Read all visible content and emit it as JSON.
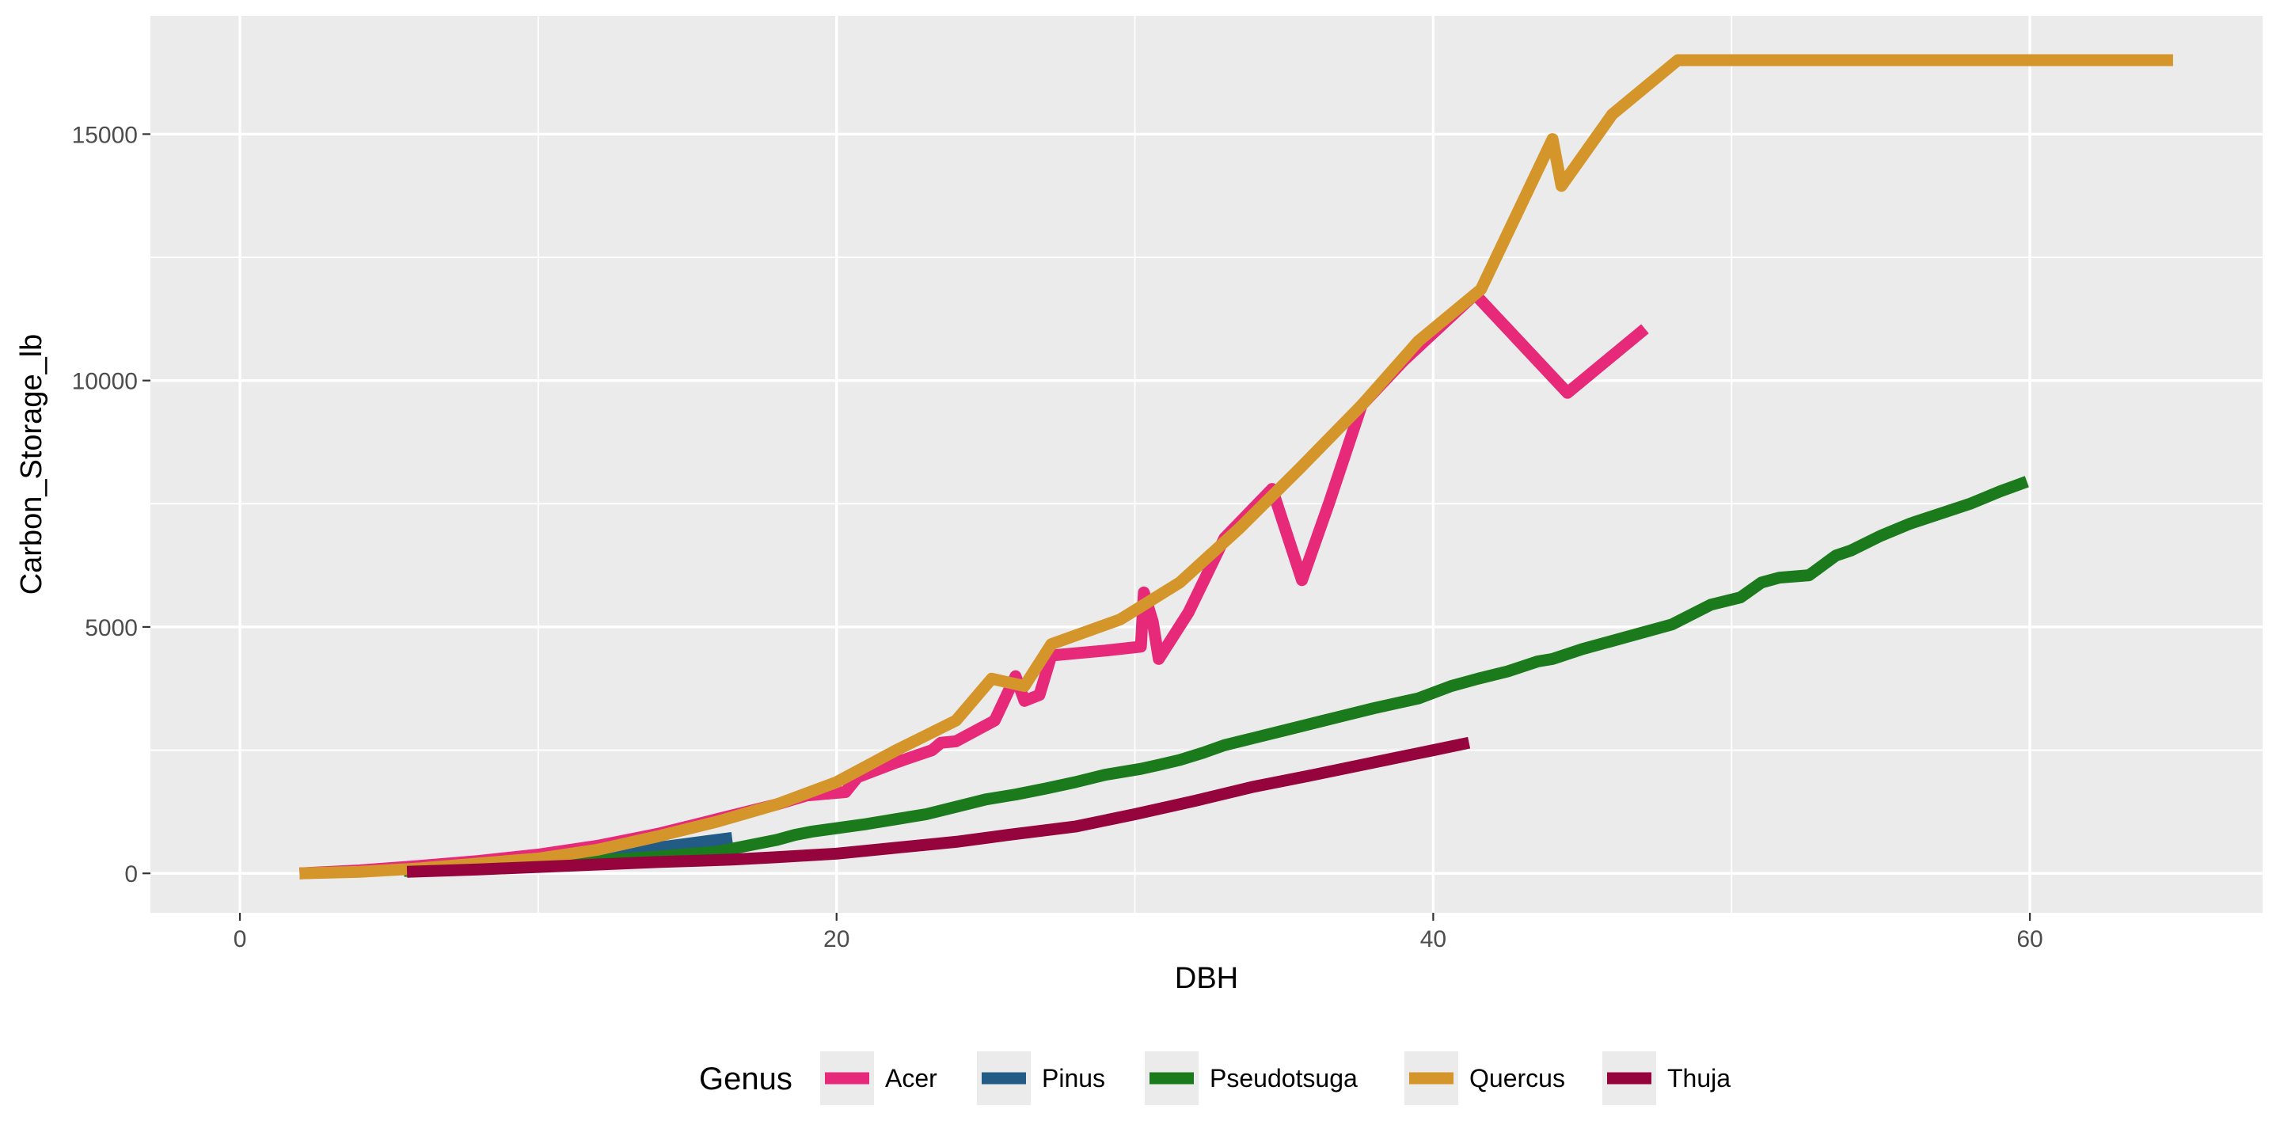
{
  "chart_data": {
    "type": "line",
    "title": "",
    "xlabel": "DBH",
    "ylabel": "Carbon_Storage_lb",
    "xlim": [
      -3,
      67.8
    ],
    "ylim": [
      -800,
      17400
    ],
    "x_ticks": [
      0,
      20,
      40,
      60
    ],
    "x_tick_labels": [
      "0",
      "20",
      "40",
      "60"
    ],
    "y_ticks": [
      0,
      5000,
      10000,
      15000
    ],
    "y_tick_labels": [
      "0",
      "5000",
      "10000",
      "15000"
    ],
    "x_minor": [
      10,
      30,
      50
    ],
    "y_minor": [
      2500,
      7500,
      12500
    ],
    "grid": true,
    "legend": {
      "title": "Genus",
      "position": "bottom"
    },
    "series": [
      {
        "name": "Acer",
        "color": "#E7297A",
        "x": [
          2,
          4,
          6,
          8,
          10,
          12,
          14,
          16,
          18,
          19,
          20.3,
          20.7,
          22,
          23.2,
          23.5,
          24,
          25.3,
          26,
          26.3,
          26.8,
          27.2,
          29,
          30.2,
          30.3,
          30.6,
          30.8,
          31.8,
          33,
          34.6,
          35.6,
          36.5,
          37.6,
          39,
          40.6,
          41.4,
          44.5,
          47.1
        ],
        "values": [
          0,
          60,
          150,
          250,
          380,
          560,
          800,
          1100,
          1400,
          1580,
          1650,
          1950,
          2250,
          2500,
          2650,
          2680,
          3100,
          4000,
          3500,
          3620,
          4420,
          4520,
          4600,
          5700,
          5100,
          4350,
          5300,
          6800,
          7800,
          5950,
          7500,
          9500,
          10400,
          11300,
          11750,
          9750,
          11050
        ]
      },
      {
        "name": "Pinus",
        "color": "#225B85",
        "x": [
          6,
          8,
          10,
          12,
          14,
          16.5
        ],
        "values": [
          80,
          150,
          250,
          380,
          520,
          720
        ]
      },
      {
        "name": "Pseudotsuga",
        "color": "#1B7A1B",
        "x": [
          5.5,
          8,
          10,
          12,
          14,
          16,
          17,
          18,
          18.6,
          19.2,
          19.8,
          20.4,
          21,
          22,
          23,
          24,
          25,
          26,
          27,
          28,
          29,
          30.2,
          30.8,
          31.5,
          32.3,
          33,
          34,
          35,
          36,
          37,
          38,
          39.5,
          40.6,
          41.5,
          42.5,
          43.5,
          44,
          45,
          46.5,
          48,
          49.3,
          50.3,
          51,
          51.6,
          52.6,
          53.5,
          54,
          55,
          56,
          57,
          58,
          59,
          59.9
        ],
        "values": [
          50,
          100,
          180,
          260,
          340,
          440,
          560,
          680,
          780,
          850,
          900,
          950,
          1000,
          1100,
          1200,
          1350,
          1500,
          1600,
          1720,
          1850,
          2000,
          2120,
          2200,
          2300,
          2450,
          2600,
          2750,
          2900,
          3050,
          3200,
          3350,
          3550,
          3800,
          3950,
          4100,
          4300,
          4350,
          4550,
          4800,
          5050,
          5450,
          5600,
          5900,
          6000,
          6050,
          6450,
          6550,
          6850,
          7100,
          7300,
          7500,
          7750,
          7950
        ]
      },
      {
        "name": "Quercus",
        "color": "#D4962A",
        "x": [
          2,
          4,
          6,
          8,
          10,
          12,
          14,
          16,
          18,
          20,
          22,
          24,
          25.2,
          26.3,
          27.2,
          29.5,
          31.5,
          33.5,
          35.5,
          37.6,
          39.5,
          41.6,
          44,
          44.3,
          46,
          48.2,
          52,
          56,
          60,
          64.8
        ],
        "values": [
          0,
          30,
          100,
          200,
          300,
          480,
          750,
          1050,
          1400,
          1850,
          2500,
          3100,
          3950,
          3800,
          4650,
          5150,
          5900,
          7000,
          8200,
          9500,
          10800,
          11850,
          14900,
          13950,
          15400,
          16500,
          16500,
          16500,
          16500,
          16500
        ]
      },
      {
        "name": "Thuja",
        "color": "#96043E",
        "x": [
          5.6,
          8,
          10,
          12,
          14,
          16.5,
          18,
          20,
          22,
          24,
          25,
          26,
          28,
          30,
          32,
          34,
          36,
          38,
          40,
          41.2
        ],
        "values": [
          30,
          80,
          130,
          180,
          230,
          280,
          330,
          400,
          520,
          640,
          720,
          800,
          950,
          1200,
          1470,
          1760,
          2000,
          2250,
          2500,
          2650
        ]
      }
    ]
  }
}
